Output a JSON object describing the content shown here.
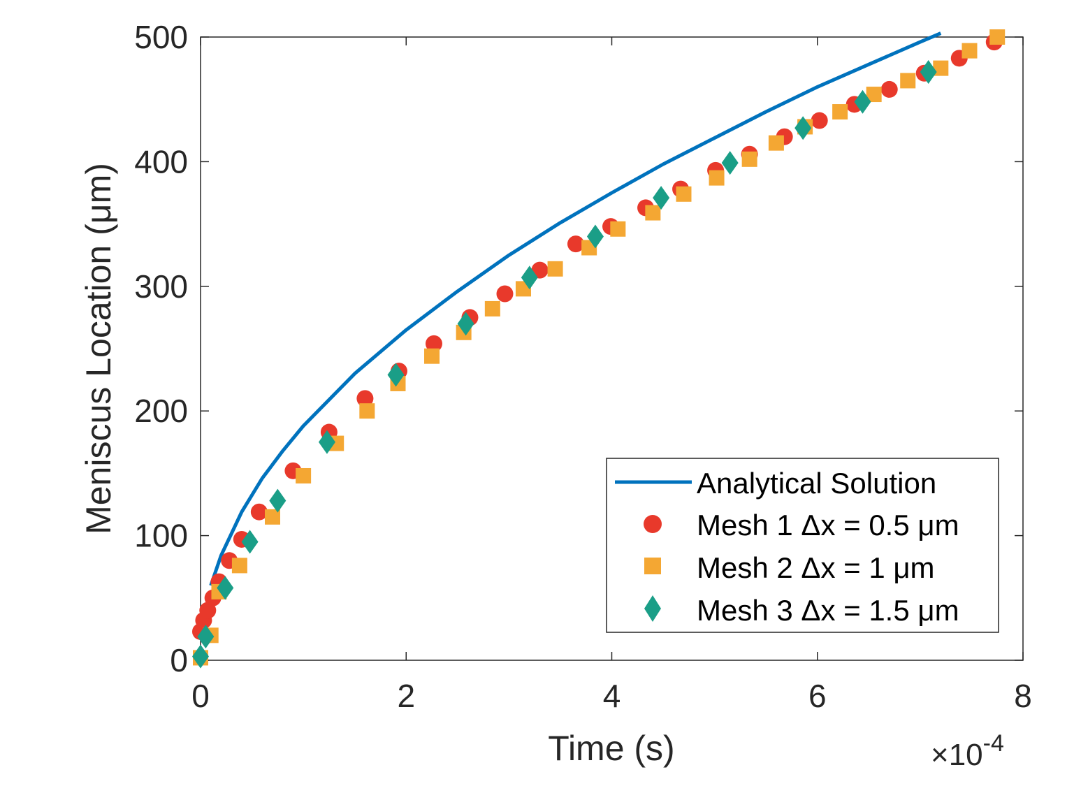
{
  "chart_data": {
    "type": "scatter",
    "xlabel": "Time (s)",
    "ylabel": "Meniscus Location (μm)",
    "x_exponent_base": "×10",
    "x_exponent_power": "-4",
    "xlim": [
      0,
      8
    ],
    "ylim": [
      0,
      500
    ],
    "x_ticks": [
      "0",
      "2",
      "4",
      "6",
      "8"
    ],
    "y_ticks": [
      "0",
      "100",
      "200",
      "300",
      "400",
      "500"
    ],
    "grid": false,
    "legend_position": "bottom-right",
    "series": [
      {
        "name": "Analytical Solution",
        "style": "line",
        "color": "#0072BD",
        "x": [
          0.1,
          0.2,
          0.4,
          0.6,
          0.8,
          1.0,
          1.5,
          2.0,
          2.5,
          3.0,
          3.5,
          4.0,
          4.5,
          5.0,
          5.5,
          6.0,
          6.5,
          7.0,
          7.2
        ],
        "y": [
          60,
          84,
          119,
          146,
          168,
          188,
          230,
          265,
          296,
          325,
          351,
          375,
          398,
          419,
          440,
          460,
          478,
          496,
          503
        ]
      },
      {
        "name": "Mesh 1 Δx = 0.5 μm",
        "style": "circle",
        "color": "#D95319",
        "fill": "#E8392B",
        "x": [
          0.0,
          0.03,
          0.07,
          0.12,
          0.18,
          0.28,
          0.4,
          0.57,
          0.9,
          1.25,
          1.6,
          1.93,
          2.27,
          2.62,
          2.96,
          3.3,
          3.65,
          3.99,
          4.33,
          4.67,
          5.01,
          5.34,
          5.68,
          6.02,
          6.36,
          6.7,
          7.04,
          7.38,
          7.72
        ],
        "y": [
          23,
          32,
          40,
          50,
          63,
          80,
          97,
          119,
          152,
          183,
          210,
          232,
          254,
          275,
          294,
          313,
          334,
          348,
          363,
          378,
          393,
          406,
          420,
          433,
          446,
          458,
          471,
          483,
          496
        ]
      },
      {
        "name": "Mesh 2 Δx = 1 μm",
        "style": "square",
        "color": "#F4A733",
        "x": [
          0.0,
          0.1,
          0.18,
          0.38,
          0.7,
          1.0,
          1.32,
          1.62,
          1.92,
          2.25,
          2.56,
          2.84,
          3.14,
          3.45,
          3.78,
          4.06,
          4.4,
          4.7,
          5.02,
          5.34,
          5.6,
          5.88,
          6.22,
          6.55,
          6.88,
          7.2,
          7.48,
          7.75
        ],
        "y": [
          2,
          20,
          55,
          76,
          115,
          148,
          174,
          200,
          222,
          244,
          263,
          282,
          298,
          314,
          331,
          346,
          359,
          374,
          387,
          402,
          415,
          428,
          440,
          454,
          465,
          475,
          489,
          500
        ]
      },
      {
        "name": "Mesh 3 Δx = 1.5 μm",
        "style": "diamond",
        "color": "#1A9E87",
        "x": [
          0.0,
          0.05,
          0.24,
          0.48,
          0.75,
          1.23,
          1.9,
          2.58,
          3.2,
          3.84,
          4.48,
          5.15,
          5.86,
          6.44,
          7.08
        ],
        "y": [
          3,
          19,
          58,
          95,
          128,
          175,
          229,
          270,
          307,
          340,
          371,
          399,
          427,
          448,
          472
        ]
      }
    ]
  }
}
